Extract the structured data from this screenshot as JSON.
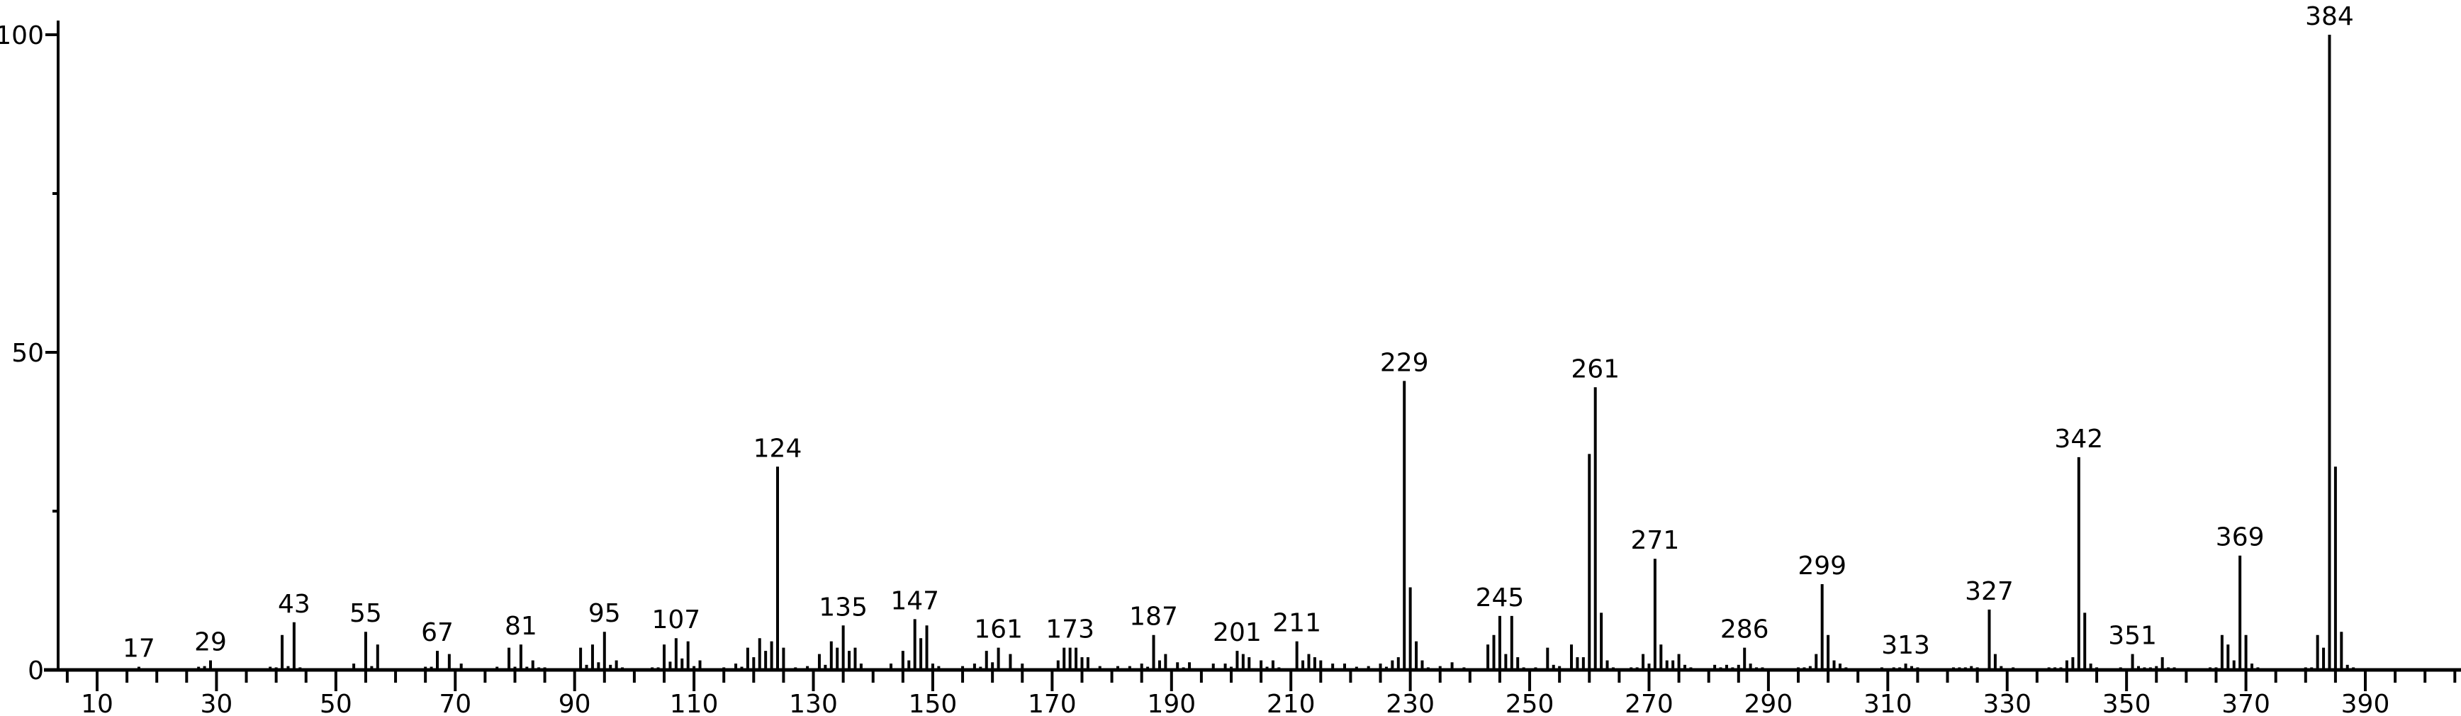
{
  "chart_data": {
    "type": "bar",
    "title": "",
    "xlabel": "",
    "ylabel": "",
    "xlim": [
      3.5,
      406
    ],
    "ylim": [
      0,
      100
    ],
    "grid": false,
    "x_ticks": [
      10,
      30,
      50,
      70,
      90,
      110,
      130,
      150,
      170,
      190,
      210,
      230,
      250,
      270,
      290,
      310,
      330,
      350,
      370,
      390
    ],
    "y_ticks": [
      0,
      50,
      100
    ],
    "colors": {
      "bars": "#000000",
      "axis": "#000000",
      "background": "#ffffff"
    },
    "peaks": [
      [
        17,
        0.5
      ],
      [
        27,
        0.5
      ],
      [
        28,
        0.6
      ],
      [
        29,
        1.5
      ],
      [
        39,
        0.5
      ],
      [
        40,
        0.4
      ],
      [
        41,
        5.5
      ],
      [
        42,
        0.6
      ],
      [
        43,
        7.5
      ],
      [
        44,
        0.4
      ],
      [
        53,
        1
      ],
      [
        55,
        6
      ],
      [
        56,
        0.6
      ],
      [
        57,
        4
      ],
      [
        65,
        0.5
      ],
      [
        66,
        0.5
      ],
      [
        67,
        3
      ],
      [
        69,
        2.5
      ],
      [
        71,
        1
      ],
      [
        77,
        0.5
      ],
      [
        79,
        3.5
      ],
      [
        80,
        0.5
      ],
      [
        81,
        4
      ],
      [
        82,
        0.5
      ],
      [
        83,
        1.5
      ],
      [
        84,
        0.4
      ],
      [
        85,
        0.4
      ],
      [
        91,
        3.5
      ],
      [
        92,
        0.8
      ],
      [
        93,
        4
      ],
      [
        94,
        1.2
      ],
      [
        95,
        6
      ],
      [
        96,
        0.8
      ],
      [
        97,
        1.5
      ],
      [
        98,
        0.4
      ],
      [
        103,
        0.4
      ],
      [
        104,
        0.4
      ],
      [
        105,
        4
      ],
      [
        106,
        1.3
      ],
      [
        107,
        5
      ],
      [
        108,
        1.8
      ],
      [
        109,
        4.5
      ],
      [
        110,
        0.6
      ],
      [
        111,
        1.5
      ],
      [
        115,
        0.4
      ],
      [
        117,
        1
      ],
      [
        118,
        0.5
      ],
      [
        119,
        3.5
      ],
      [
        120,
        2
      ],
      [
        121,
        5
      ],
      [
        122,
        3
      ],
      [
        123,
        4.5
      ],
      [
        124,
        32
      ],
      [
        125,
        3.5
      ],
      [
        127,
        0.4
      ],
      [
        129,
        0.6
      ],
      [
        131,
        2.5
      ],
      [
        132,
        0.8
      ],
      [
        133,
        4.5
      ],
      [
        134,
        3.5
      ],
      [
        135,
        7
      ],
      [
        136,
        3
      ],
      [
        137,
        3.5
      ],
      [
        138,
        1
      ],
      [
        143,
        1
      ],
      [
        145,
        3
      ],
      [
        146,
        1.5
      ],
      [
        147,
        8
      ],
      [
        148,
        5
      ],
      [
        149,
        7
      ],
      [
        150,
        1
      ],
      [
        151,
        0.6
      ],
      [
        155,
        0.6
      ],
      [
        157,
        1
      ],
      [
        158,
        0.5
      ],
      [
        159,
        3
      ],
      [
        160,
        1.2
      ],
      [
        161,
        3.5
      ],
      [
        163,
        2.5
      ],
      [
        165,
        1
      ],
      [
        171,
        1.5
      ],
      [
        172,
        3.5
      ],
      [
        173,
        3.5
      ],
      [
        174,
        3.5
      ],
      [
        175,
        2
      ],
      [
        176,
        2
      ],
      [
        178,
        0.6
      ],
      [
        181,
        0.6
      ],
      [
        183,
        0.6
      ],
      [
        185,
        1
      ],
      [
        186,
        0.5
      ],
      [
        187,
        5.5
      ],
      [
        188,
        1.5
      ],
      [
        189,
        2.5
      ],
      [
        191,
        1.2
      ],
      [
        192,
        0.4
      ],
      [
        193,
        1.2
      ],
      [
        197,
        1
      ],
      [
        199,
        1
      ],
      [
        200,
        0.5
      ],
      [
        201,
        3
      ],
      [
        202,
        2.5
      ],
      [
        203,
        2
      ],
      [
        205,
        1.5
      ],
      [
        206,
        0.5
      ],
      [
        207,
        1.5
      ],
      [
        208,
        0.4
      ],
      [
        211,
        4.5
      ],
      [
        212,
        1.5
      ],
      [
        213,
        2.5
      ],
      [
        214,
        2
      ],
      [
        215,
        1.5
      ],
      [
        217,
        1
      ],
      [
        219,
        1
      ],
      [
        221,
        0.5
      ],
      [
        223,
        0.6
      ],
      [
        225,
        1
      ],
      [
        226,
        0.5
      ],
      [
        227,
        1.5
      ],
      [
        228,
        2
      ],
      [
        229,
        45.5
      ],
      [
        230,
        13
      ],
      [
        231,
        4.5
      ],
      [
        232,
        1.5
      ],
      [
        233,
        0.4
      ],
      [
        235,
        0.6
      ],
      [
        237,
        1.2
      ],
      [
        239,
        0.4
      ],
      [
        243,
        4
      ],
      [
        244,
        5.5
      ],
      [
        245,
        8.5
      ],
      [
        246,
        2.5
      ],
      [
        247,
        8.5
      ],
      [
        248,
        2
      ],
      [
        249,
        0.4
      ],
      [
        251,
        0.4
      ],
      [
        253,
        3.5
      ],
      [
        254,
        0.8
      ],
      [
        255,
        0.6
      ],
      [
        257,
        4
      ],
      [
        258,
        2
      ],
      [
        259,
        2
      ],
      [
        260,
        34
      ],
      [
        261,
        44.5
      ],
      [
        262,
        9
      ],
      [
        263,
        1.5
      ],
      [
        264,
        0.4
      ],
      [
        267,
        0.4
      ],
      [
        268,
        0.4
      ],
      [
        269,
        2.5
      ],
      [
        270,
        1
      ],
      [
        271,
        17.5
      ],
      [
        272,
        4
      ],
      [
        273,
        1.5
      ],
      [
        274,
        1.5
      ],
      [
        275,
        2.5
      ],
      [
        276,
        0.8
      ],
      [
        277,
        0.4
      ],
      [
        281,
        0.8
      ],
      [
        282,
        0.4
      ],
      [
        283,
        0.8
      ],
      [
        284,
        0.4
      ],
      [
        285,
        0.8
      ],
      [
        286,
        3.5
      ],
      [
        287,
        1
      ],
      [
        288,
        0.4
      ],
      [
        289,
        0.4
      ],
      [
        295,
        0.4
      ],
      [
        296,
        0.4
      ],
      [
        297,
        0.6
      ],
      [
        298,
        2.5
      ],
      [
        299,
        13.5
      ],
      [
        300,
        5.5
      ],
      [
        301,
        1.5
      ],
      [
        302,
        1
      ],
      [
        303,
        0.4
      ],
      [
        309,
        0.4
      ],
      [
        311,
        0.4
      ],
      [
        312,
        0.4
      ],
      [
        313,
        1
      ],
      [
        314,
        0.6
      ],
      [
        315,
        0.4
      ],
      [
        321,
        0.4
      ],
      [
        322,
        0.4
      ],
      [
        323,
        0.4
      ],
      [
        324,
        0.6
      ],
      [
        325,
        0.4
      ],
      [
        327,
        9.5
      ],
      [
        328,
        2.5
      ],
      [
        329,
        0.6
      ],
      [
        331,
        0.4
      ],
      [
        337,
        0.4
      ],
      [
        338,
        0.4
      ],
      [
        339,
        0.4
      ],
      [
        340,
        1.5
      ],
      [
        341,
        2
      ],
      [
        342,
        33.5
      ],
      [
        343,
        9
      ],
      [
        344,
        1
      ],
      [
        345,
        0.4
      ],
      [
        349,
        0.4
      ],
      [
        351,
        2.5
      ],
      [
        352,
        0.6
      ],
      [
        353,
        0.4
      ],
      [
        354,
        0.4
      ],
      [
        355,
        0.6
      ],
      [
        356,
        2
      ],
      [
        357,
        0.4
      ],
      [
        358,
        0.4
      ],
      [
        364,
        0.4
      ],
      [
        365,
        0.4
      ],
      [
        366,
        5.5
      ],
      [
        367,
        4
      ],
      [
        368,
        1.5
      ],
      [
        369,
        18
      ],
      [
        370,
        5.5
      ],
      [
        371,
        1
      ],
      [
        372,
        0.4
      ],
      [
        380,
        0.4
      ],
      [
        381,
        0.4
      ],
      [
        382,
        5.5
      ],
      [
        383,
        3.5
      ],
      [
        384,
        100
      ],
      [
        385,
        32
      ],
      [
        386,
        6
      ],
      [
        387,
        0.8
      ],
      [
        388,
        0.4
      ]
    ],
    "peak_labels": [
      "17",
      "29",
      "43",
      "55",
      "67",
      "81",
      "95",
      "107",
      "124",
      "135",
      "147",
      "161",
      "173",
      "187",
      "201",
      "211",
      "229",
      "245",
      "261",
      "271",
      "286",
      "299",
      "313",
      "327",
      "342",
      "351",
      "369",
      "384"
    ]
  }
}
